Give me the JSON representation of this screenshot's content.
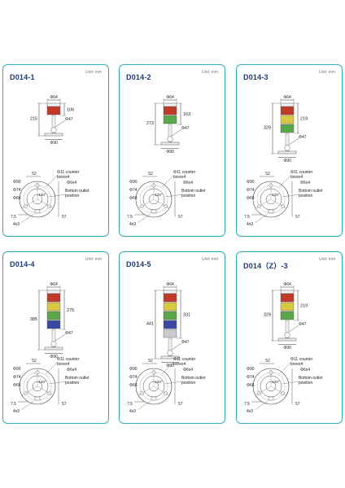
{
  "unit_label": "Unit:  mm",
  "labels": {
    "top_diameter": "Φ64",
    "base_diameter": "Φ90",
    "pole_diameter": "Φ47",
    "d90": "Φ90",
    "d74": "Φ74",
    "d66": "Φ66",
    "dim52": "52",
    "counter_bore_1": "Φ11 counter",
    "counter_bore_2": "borex4",
    "hole": "Φ6x4",
    "outlet_1": "Bottom outlet",
    "outlet_2": "position",
    "dim57": "57",
    "dim75": "7.5",
    "dim4x3": "4x3",
    "angle120": "120°"
  },
  "colors": {
    "frame": "#2fa9b6",
    "title": "#1b3a73",
    "red": "#c0392b",
    "yellow": "#d8c844",
    "green": "#5aa64a",
    "blue": "#3a4aa0",
    "white": "#c8ccd0"
  },
  "models": [
    {
      "title": "D014-1",
      "overall": "215",
      "lamp": "106",
      "tiers": [
        "red"
      ]
    },
    {
      "title": "D014-2",
      "overall": "273",
      "lamp": "163",
      "tiers": [
        "red",
        "green"
      ]
    },
    {
      "title": "D014-3",
      "overall": "329",
      "lamp": "219",
      "tiers": [
        "red",
        "yellow",
        "green"
      ]
    },
    {
      "title": "D014-4",
      "overall": "385",
      "lamp": "275",
      "tiers": [
        "red",
        "yellow",
        "green",
        "blue"
      ]
    },
    {
      "title": "D014-5",
      "overall": "441",
      "lamp": "331",
      "tiers": [
        "red",
        "yellow",
        "green",
        "blue",
        "white"
      ]
    },
    {
      "title": "D014（Z）-3",
      "overall": "329",
      "lamp": "219",
      "tiers": [
        "red",
        "yellow",
        "green"
      ]
    }
  ]
}
